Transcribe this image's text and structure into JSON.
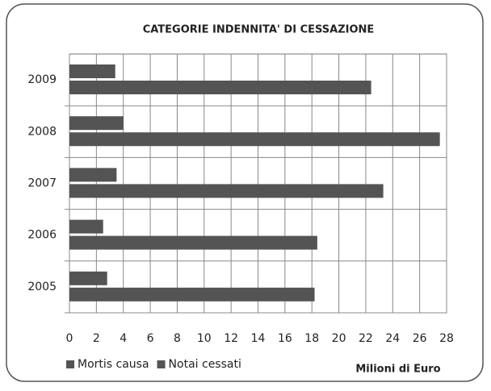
{
  "chart_data": {
    "type": "bar",
    "orientation": "horizontal",
    "title": "CATEGORIE INDENNITA' DI CESSAZIONE",
    "categories": [
      "2009",
      "2008",
      "2007",
      "2006",
      "2005"
    ],
    "series": [
      {
        "name": "Mortis causa",
        "color": "#545454",
        "values": [
          3.4,
          4.0,
          3.5,
          2.5,
          2.8
        ]
      },
      {
        "name": "Notai cessati",
        "color": "#545454",
        "values": [
          22.4,
          27.5,
          23.3,
          18.4,
          18.2
        ]
      }
    ],
    "xlabel": "Milioni di Euro",
    "xlim": [
      0,
      28
    ],
    "xticks": [
      0,
      2,
      4,
      6,
      8,
      10,
      12,
      14,
      16,
      18,
      20,
      22,
      24,
      26,
      28
    ],
    "grid": true,
    "legend": "bottom-left"
  }
}
